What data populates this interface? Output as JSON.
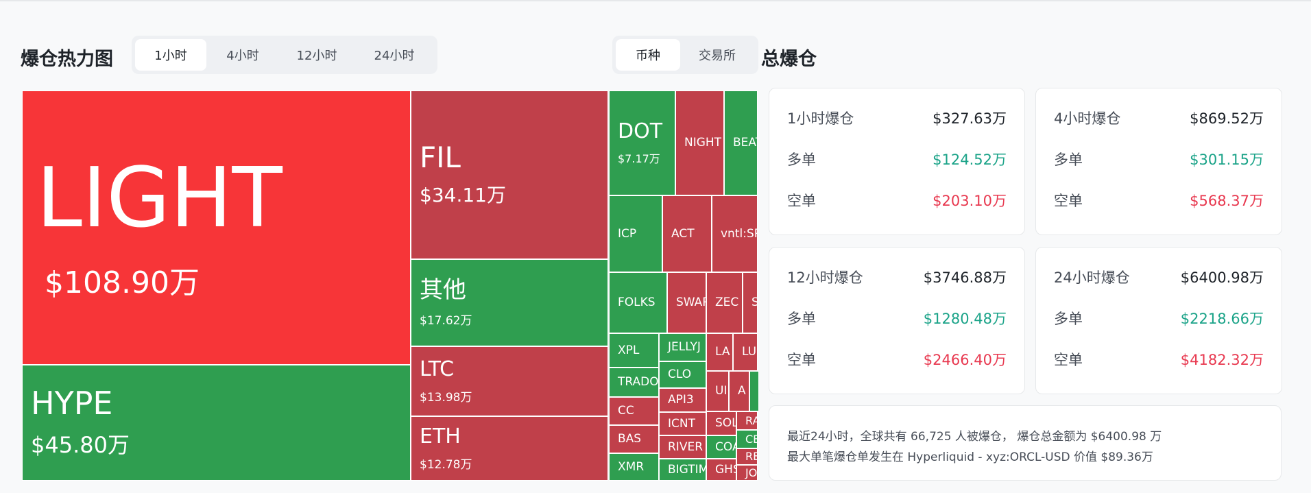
{
  "heatmap": {
    "title": "爆仓热力图",
    "time_tabs": [
      {
        "label": "1小时",
        "active": true
      },
      {
        "label": "4小时"
      },
      {
        "label": "12小时"
      },
      {
        "label": "24小时"
      }
    ],
    "group_tabs": [
      {
        "label": "币种",
        "active": true
      },
      {
        "label": "交易所"
      }
    ],
    "colors": {
      "hot": "#f73538",
      "short": "#c0404a",
      "long": "#2f9e50"
    },
    "cells": [
      {
        "name": "LIGHT",
        "value": "$108.90万",
        "color": "hot"
      },
      {
        "name": "HYPE",
        "value": "$45.80万",
        "color": "long"
      },
      {
        "name": "FIL",
        "value": "$34.11万",
        "color": "short"
      },
      {
        "name": "其他",
        "value": "$17.62万",
        "color": "long"
      },
      {
        "name": "LTC",
        "value": "$13.98万",
        "color": "short"
      },
      {
        "name": "ETH",
        "value": "$12.78万",
        "color": "short"
      },
      {
        "name": "DOT",
        "value": "$7.17万",
        "color": "long"
      },
      {
        "name": "NIGHT",
        "color": "short"
      },
      {
        "name": "BEAT",
        "color": "long"
      },
      {
        "name": "ICP",
        "color": "long"
      },
      {
        "name": "ACT",
        "color": "short"
      },
      {
        "name": "vntl:SP",
        "color": "short"
      },
      {
        "name": "FOLKS",
        "color": "long"
      },
      {
        "name": "SWAP",
        "color": "short"
      },
      {
        "name": "ZEC",
        "color": "short"
      },
      {
        "name": "S",
        "color": "short"
      },
      {
        "name": "XPL",
        "color": "long"
      },
      {
        "name": "TRADO",
        "color": "long"
      },
      {
        "name": "CC",
        "color": "short"
      },
      {
        "name": "BAS",
        "color": "short"
      },
      {
        "name": "XMR",
        "color": "long"
      },
      {
        "name": "JELLYJ",
        "color": "long"
      },
      {
        "name": "CLO",
        "color": "long"
      },
      {
        "name": "API3",
        "color": "short"
      },
      {
        "name": "ICNT",
        "color": "short"
      },
      {
        "name": "RIVER",
        "color": "short"
      },
      {
        "name": "BIGTIME",
        "color": "long"
      },
      {
        "name": "LA",
        "color": "short"
      },
      {
        "name": "LU",
        "color": "short"
      },
      {
        "name": "UI",
        "color": "short"
      },
      {
        "name": "A",
        "color": "short"
      },
      {
        "name": "",
        "color": "long"
      },
      {
        "name": "SOL",
        "color": "short"
      },
      {
        "name": "COA",
        "color": "long"
      },
      {
        "name": "GHS",
        "color": "short"
      },
      {
        "name": "RA",
        "color": "short"
      },
      {
        "name": "CB",
        "color": "long"
      },
      {
        "name": "RE",
        "color": "short"
      },
      {
        "name": "JO",
        "color": "short"
      }
    ]
  },
  "total": {
    "title": "总爆仓",
    "cards": [
      {
        "label": "1小时爆仓",
        "total": "$327.63万",
        "long_label": "多单",
        "long": "$124.52万",
        "short_label": "空单",
        "short": "$203.10万"
      },
      {
        "label": "4小时爆仓",
        "total": "$869.52万",
        "long_label": "多单",
        "long": "$301.15万",
        "short_label": "空单",
        "short": "$568.37万"
      },
      {
        "label": "12小时爆仓",
        "total": "$3746.88万",
        "long_label": "多单",
        "long": "$1280.48万",
        "short_label": "空单",
        "short": "$2466.40万"
      },
      {
        "label": "24小时爆仓",
        "total": "$6400.98万",
        "long_label": "多单",
        "long": "$2218.66万",
        "short_label": "空单",
        "short": "$4182.32万"
      }
    ],
    "summary_line1": "最近24小时，全球共有 66,725 人被爆仓， 爆仓总金额为 $6400.98 万",
    "summary_line2": "最大单笔爆仓单发生在 Hyperliquid - xyz:ORCL-USD 价值 $89.36万"
  }
}
